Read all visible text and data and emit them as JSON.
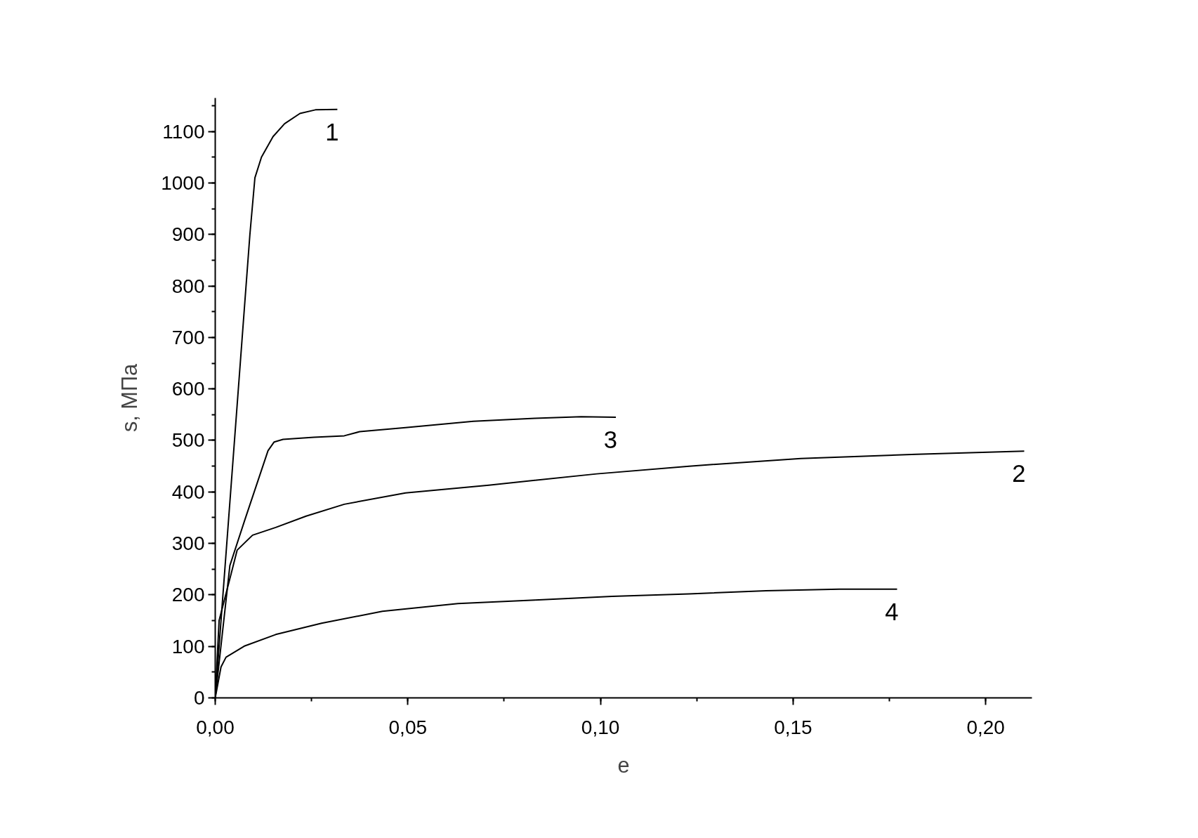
{
  "chart_data": {
    "type": "line",
    "xlabel": "e",
    "ylabel": "s, МПа",
    "xlim": [
      0,
      0.212
    ],
    "ylim": [
      0,
      1165
    ],
    "xticks": [
      {
        "value": 0,
        "label": "0,00"
      },
      {
        "value": 0.05,
        "label": "0,05"
      },
      {
        "value": 0.1,
        "label": "0,10"
      },
      {
        "value": 0.15,
        "label": "0,15"
      },
      {
        "value": 0.2,
        "label": "0,20"
      }
    ],
    "yticks": [
      0,
      100,
      200,
      300,
      400,
      500,
      600,
      700,
      800,
      900,
      1000,
      1100
    ],
    "grid": false,
    "marker": "none",
    "line_style": "solid",
    "series": [
      {
        "name": "1",
        "color": "#000000",
        "x": [
          0,
          0.007,
          0.009,
          0.0103,
          0.012,
          0.015,
          0.018,
          0.022,
          0.026,
          0.0317
        ],
        "values": [
          0,
          700,
          900,
          1010,
          1050,
          1090,
          1115,
          1135,
          1142,
          1143
        ]
      },
      {
        "name": "2",
        "color": "#000000",
        "x": [
          0,
          0.001,
          0.0044,
          0.0057,
          0.0097,
          0.0157,
          0.0236,
          0.0335,
          0.0494,
          0.071,
          0.099,
          0.123,
          0.152,
          0.182,
          0.21
        ],
        "values": [
          0,
          150,
          249,
          287,
          316,
          331,
          353,
          376,
          398,
          413,
          435,
          450,
          465,
          473,
          479
        ]
      },
      {
        "name": "3",
        "color": "#000000",
        "x": [
          0,
          0.0038,
          0.0077,
          0.0137,
          0.0153,
          0.0176,
          0.0256,
          0.0335,
          0.0375,
          0.0494,
          0.067,
          0.083,
          0.095,
          0.104
        ],
        "values": [
          0,
          257,
          346,
          480,
          497,
          502,
          506,
          509,
          517,
          525,
          537,
          543,
          546,
          545
        ]
      },
      {
        "name": "4",
        "color": "#000000",
        "x": [
          0,
          0.0015,
          0.0028,
          0.0077,
          0.0157,
          0.0276,
          0.0434,
          0.063,
          0.083,
          0.103,
          0.123,
          0.143,
          0.162,
          0.177
        ],
        "values": [
          0,
          60,
          79,
          101,
          123,
          145,
          168,
          183,
          190,
          197,
          202,
          208,
          211,
          211
        ]
      }
    ]
  }
}
